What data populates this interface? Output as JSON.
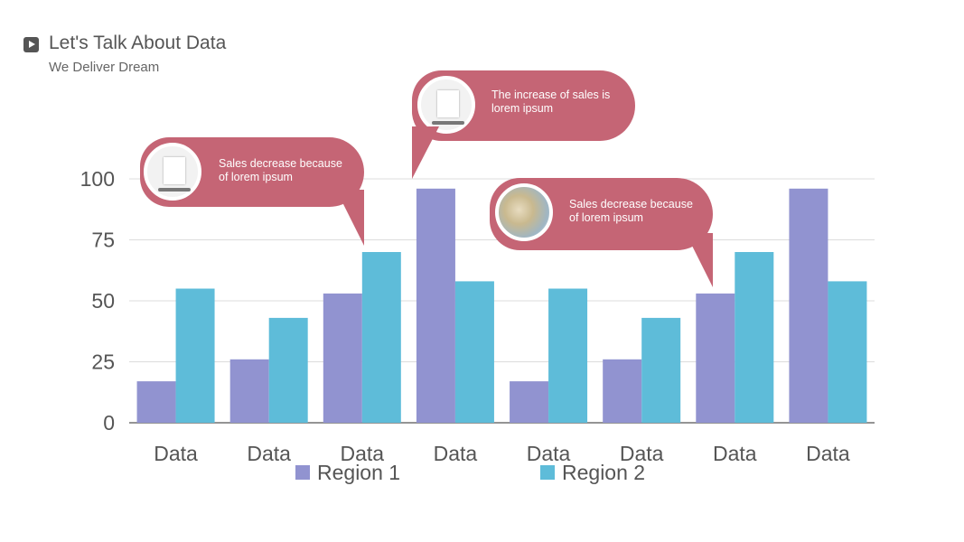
{
  "header": {
    "title": "Let's Talk About Data",
    "subtitle": "We Deliver Dream"
  },
  "callouts": [
    {
      "text": "Sales decrease because of lorem ipsum"
    },
    {
      "text": "The increase of sales is lorem ipsum"
    },
    {
      "text": "Sales decrease because of lorem ipsum"
    }
  ],
  "chart_data": {
    "type": "bar",
    "categories": [
      "Data",
      "Data",
      "Data",
      "Data",
      "Data",
      "Data",
      "Data",
      "Data"
    ],
    "series": [
      {
        "name": "Region 1",
        "color": "#9193d0",
        "values": [
          17,
          26,
          53,
          96,
          17,
          26,
          53,
          96
        ]
      },
      {
        "name": "Region 2",
        "color": "#5ebcd9",
        "values": [
          55,
          43,
          70,
          58,
          55,
          43,
          70,
          58
        ]
      }
    ],
    "yticks": [
      0,
      25,
      50,
      75,
      100
    ],
    "ylim": [
      0,
      100
    ],
    "grid": true,
    "legend": "bottom"
  }
}
